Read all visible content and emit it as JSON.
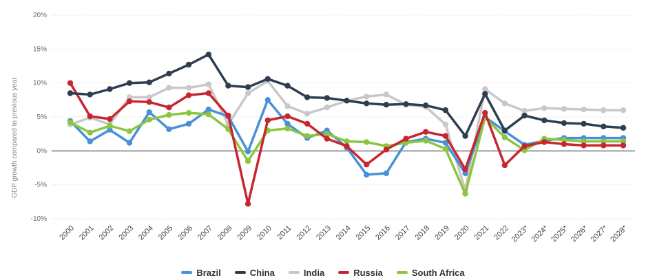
{
  "chart_data": {
    "type": "line",
    "title": "",
    "xlabel": "",
    "ylabel": "GDP growth compared to previous year",
    "ylim": [
      -10,
      20
    ],
    "y_ticks": [
      "20%",
      "15%",
      "10%",
      "5%",
      "0%",
      "-5%",
      "-10%"
    ],
    "y_tick_values": [
      20,
      15,
      10,
      5,
      0,
      -5,
      -10
    ],
    "categories": [
      "2000",
      "2001",
      "2002",
      "2003",
      "2004",
      "2005",
      "2006",
      "2007",
      "2008",
      "2009",
      "2010",
      "2011",
      "2012",
      "2013",
      "2014",
      "2015",
      "2016",
      "2017",
      "2018",
      "2019",
      "2020",
      "2021",
      "2022",
      "2023*",
      "2024*",
      "2025*",
      "2026*",
      "2027*",
      "2028*"
    ],
    "grid": true,
    "legend_position": "bottom",
    "series": [
      {
        "name": "Brazil",
        "color": "#4a90d9",
        "values": [
          4.4,
          1.4,
          3.1,
          1.2,
          5.7,
          3.2,
          4.0,
          6.1,
          5.1,
          -0.1,
          7.5,
          4.0,
          1.9,
          3.0,
          0.5,
          -3.5,
          -3.3,
          1.3,
          1.8,
          1.2,
          -3.3,
          5.0,
          2.9,
          0.9,
          1.5,
          1.9,
          1.9,
          1.9,
          1.9
        ]
      },
      {
        "name": "China",
        "color": "#2e3e50",
        "values": [
          8.5,
          8.3,
          9.1,
          10.0,
          10.1,
          11.4,
          12.7,
          14.2,
          9.6,
          9.4,
          10.6,
          9.6,
          7.9,
          7.8,
          7.4,
          7.0,
          6.8,
          6.9,
          6.7,
          6.0,
          2.2,
          8.4,
          3.0,
          5.2,
          4.5,
          4.1,
          4.0,
          3.6,
          3.4
        ]
      },
      {
        "name": "India",
        "color": "#c8c8c8",
        "values": [
          3.9,
          4.9,
          3.9,
          7.9,
          7.9,
          9.3,
          9.3,
          9.8,
          3.9,
          8.5,
          10.3,
          6.6,
          5.5,
          6.4,
          7.4,
          8.0,
          8.3,
          6.8,
          6.5,
          3.9,
          -5.8,
          9.1,
          7.0,
          5.9,
          6.3,
          6.2,
          6.1,
          6.0,
          6.0
        ]
      },
      {
        "name": "Russia",
        "color": "#c8262e",
        "values": [
          10.0,
          5.1,
          4.7,
          7.3,
          7.2,
          6.4,
          8.2,
          8.5,
          5.2,
          -7.8,
          4.5,
          5.1,
          4.0,
          1.8,
          0.7,
          -2.0,
          0.2,
          1.8,
          2.8,
          2.2,
          -2.7,
          5.6,
          -2.1,
          0.7,
          1.3,
          1.0,
          0.8,
          0.8,
          0.8
        ]
      },
      {
        "name": "South Africa",
        "color": "#8cc63f",
        "values": [
          4.2,
          2.7,
          3.7,
          2.9,
          4.6,
          5.3,
          5.6,
          5.4,
          3.2,
          -1.5,
          3.0,
          3.3,
          2.2,
          2.5,
          1.4,
          1.3,
          0.7,
          1.2,
          1.5,
          0.3,
          -6.3,
          4.9,
          2.0,
          0.1,
          1.8,
          1.6,
          1.4,
          1.4,
          1.4
        ]
      }
    ]
  }
}
